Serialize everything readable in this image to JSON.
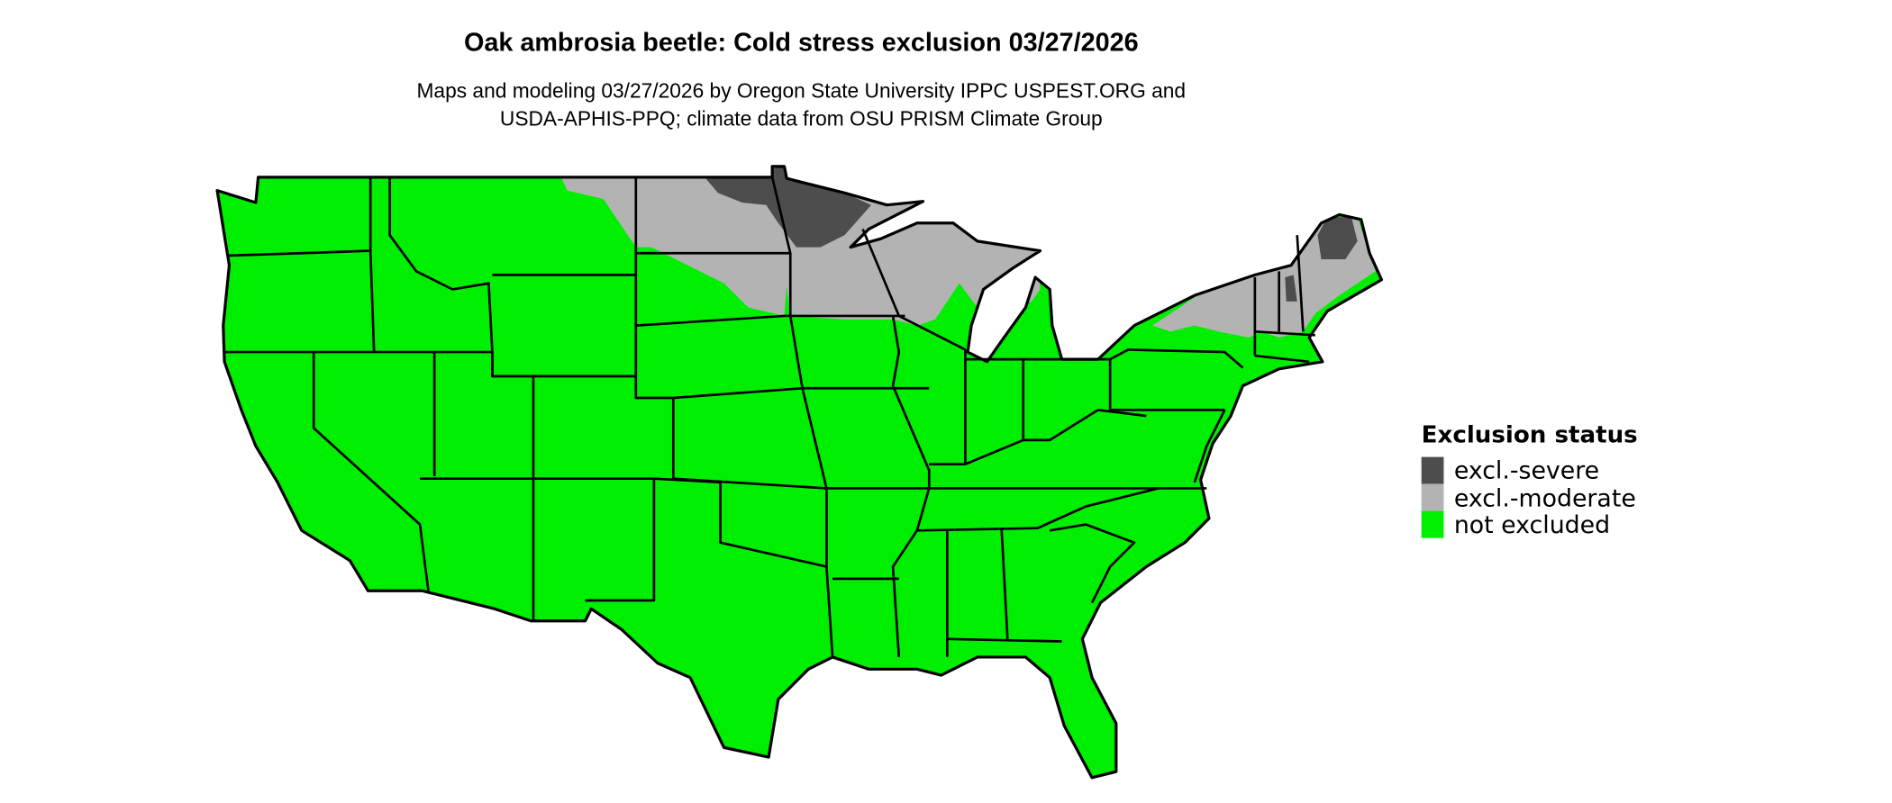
{
  "title": "Oak ambrosia beetle: Cold stress exclusion 03/27/2026",
  "subtitle": [
    "Maps and modeling 03/27/2026 by Oregon State University IPPC USPEST.ORG and",
    "USDA-APHIS-PPQ; climate data from OSU PRISM Climate Group"
  ],
  "legend": {
    "title": "Exclusion status",
    "items": [
      {
        "label": "excl.-severe",
        "color": "#4d4d4d"
      },
      {
        "label": "excl.-moderate",
        "color": "#b3b3b3"
      },
      {
        "label": "not excluded",
        "color": "#00ee00"
      }
    ]
  }
}
